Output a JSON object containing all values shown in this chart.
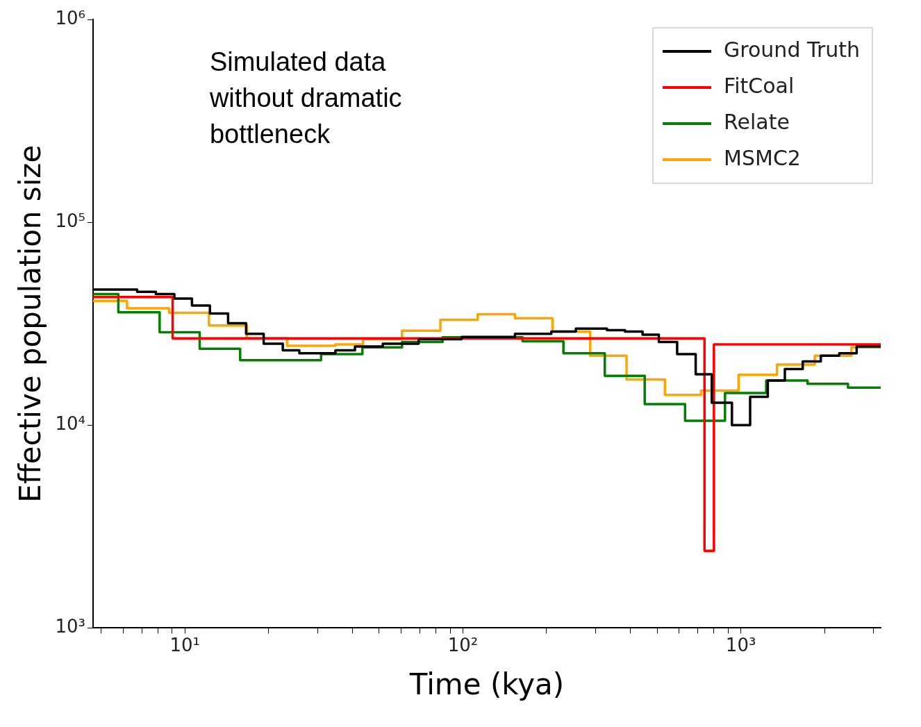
{
  "chart_data": {
    "type": "step",
    "xlabel": "Time (kya)",
    "ylabel": "Effective population size",
    "log": "xy",
    "legend": "top right",
    "grid": false,
    "annotations": [
      "Simulated data without dramatic bottleneck"
    ],
    "xlim": [
      4.67,
      3186
    ],
    "ylim": [
      1000,
      1000000
    ],
    "xticks": [
      {
        "value": 5,
        "label": null
      },
      {
        "value": 6,
        "label": null
      },
      {
        "value": 7,
        "label": null
      },
      {
        "value": 8,
        "label": null
      },
      {
        "value": 9,
        "label": null
      },
      {
        "value": 10,
        "label": "10¹"
      },
      {
        "value": 20,
        "label": null
      },
      {
        "value": 30,
        "label": null
      },
      {
        "value": 40,
        "label": null
      },
      {
        "value": 50,
        "label": null
      },
      {
        "value": 60,
        "label": null
      },
      {
        "value": 70,
        "label": null
      },
      {
        "value": 80,
        "label": null
      },
      {
        "value": 90,
        "label": null
      },
      {
        "value": 100,
        "label": "10²"
      },
      {
        "value": 200,
        "label": null
      },
      {
        "value": 300,
        "label": null
      },
      {
        "value": 400,
        "label": null
      },
      {
        "value": 500,
        "label": null
      },
      {
        "value": 600,
        "label": null
      },
      {
        "value": 700,
        "label": null
      },
      {
        "value": 800,
        "label": null
      },
      {
        "value": 900,
        "label": null
      },
      {
        "value": 1000,
        "label": "10³"
      },
      {
        "value": 2000,
        "label": null
      },
      {
        "value": 3000,
        "label": null
      }
    ],
    "yticks": [
      {
        "value": 1000,
        "label": "10³"
      },
      {
        "value": 10000,
        "label": "10⁴"
      },
      {
        "value": 100000,
        "label": "10⁵"
      },
      {
        "value": 1000000,
        "label": "10⁶"
      }
    ],
    "series": [
      {
        "name": "Ground Truth",
        "color": "#000000",
        "x": [
          4.67,
          6.73,
          7.86,
          9.16,
          10.6,
          12.3,
          14.3,
          16.6,
          19.2,
          22.5,
          25.8,
          34.8,
          40.9,
          51.5,
          69.3,
          99,
          154,
          208,
          255,
          330,
          383,
          443,
          507,
          590,
          688,
          786,
          929,
          1080,
          1250,
          1440,
          1670,
          1940,
          2260,
          2610,
          3186
        ],
        "values": [
          46600,
          45400,
          44300,
          42100,
          38900,
          35500,
          31800,
          28200,
          25200,
          23400,
          22600,
          23400,
          24400,
          25200,
          26500,
          27200,
          28200,
          28900,
          29900,
          29400,
          28900,
          27900,
          25700,
          22400,
          17800,
          12900,
          10000,
          13800,
          16600,
          18900,
          20600,
          22000,
          22600,
          24400,
          24400
        ]
      },
      {
        "name": "FitCoal",
        "color": "#ff0000",
        "x": [
          4.67,
          9.03,
          740,
          800,
          3186
        ],
        "values": [
          42800,
          26800,
          2400,
          25000,
          25000
        ]
      },
      {
        "name": "Relate",
        "color": "#008000",
        "x": [
          4.67,
          5.76,
          8.11,
          11.3,
          15.8,
          30.9,
          43.5,
          60.4,
          84.5,
          164,
          230,
          324,
          451,
          630,
          877,
          1234,
          1738,
          2429,
          3186
        ],
        "values": [
          44300,
          36000,
          28700,
          23800,
          20900,
          22400,
          24200,
          25700,
          27100,
          25900,
          22600,
          17500,
          12700,
          10500,
          14400,
          16600,
          16000,
          15300,
          15300
        ]
      },
      {
        "name": "MSMC2",
        "color": "#ffa500",
        "x": [
          4.67,
          6.19,
          8.77,
          12.2,
          16.7,
          23.3,
          34.8,
          43.7,
          60.4,
          83,
          113,
          154,
          210,
          287,
          388,
          533,
          719,
          981,
          1349,
          1844,
          2500,
          3186
        ],
        "values": [
          41000,
          37700,
          35800,
          31000,
          26800,
          24600,
          25000,
          26500,
          29200,
          33100,
          35200,
          33700,
          28900,
          22000,
          16800,
          14100,
          14800,
          17700,
          19900,
          22000,
          24200,
          24200
        ]
      }
    ]
  }
}
